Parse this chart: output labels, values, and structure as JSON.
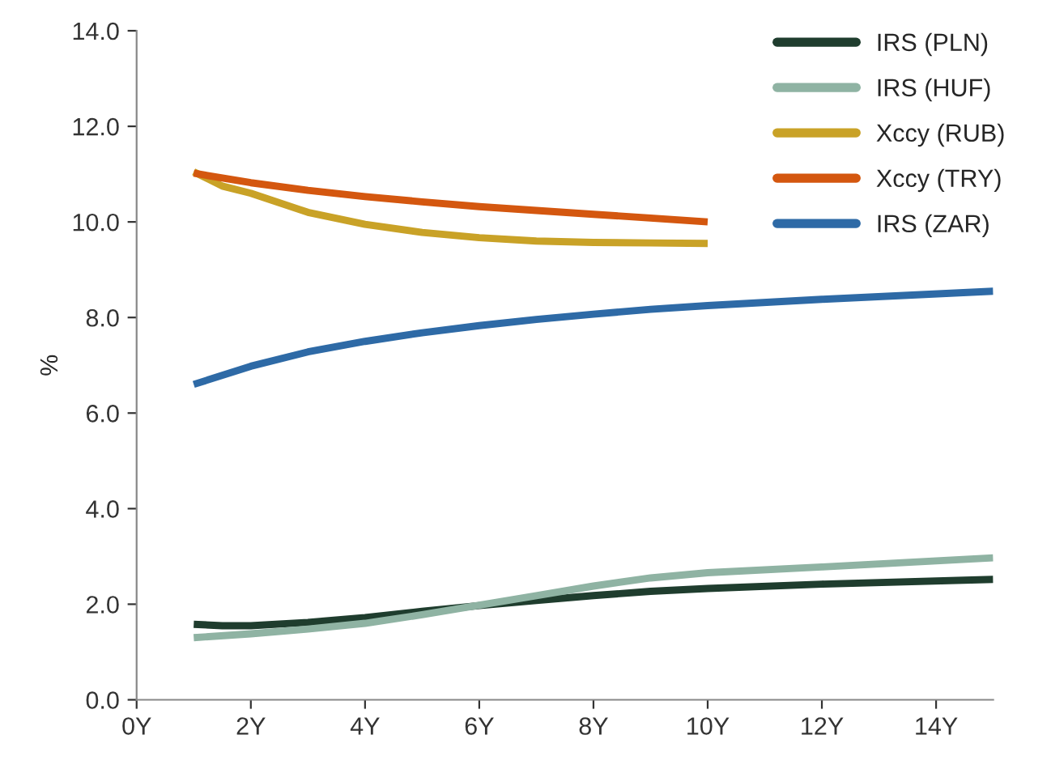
{
  "chart_data": {
    "type": "line",
    "ylabel": "%",
    "xlim": [
      0,
      15
    ],
    "ylim": [
      0,
      14
    ],
    "xticks": [
      {
        "value": 0,
        "label": "0Y"
      },
      {
        "value": 2,
        "label": "2Y"
      },
      {
        "value": 4,
        "label": "4Y"
      },
      {
        "value": 6,
        "label": "6Y"
      },
      {
        "value": 8,
        "label": "8Y"
      },
      {
        "value": 10,
        "label": "10Y"
      },
      {
        "value": 12,
        "label": "12Y"
      },
      {
        "value": 14,
        "label": "14Y"
      }
    ],
    "yticks": [
      {
        "value": 0,
        "label": "0.0"
      },
      {
        "value": 2,
        "label": "2.0"
      },
      {
        "value": 4,
        "label": "4.0"
      },
      {
        "value": 6,
        "label": "6.0"
      },
      {
        "value": 8,
        "label": "8.0"
      },
      {
        "value": 10,
        "label": "10.0"
      },
      {
        "value": 12,
        "label": "12.0"
      },
      {
        "value": 14,
        "label": "14.0"
      }
    ],
    "grid": false,
    "legend": "top right",
    "marker": "none",
    "line_style": "solid",
    "series": [
      {
        "name": "IRS (PLN)",
        "color": "#1f3d2e",
        "x": [
          1,
          1.5,
          2,
          3,
          4,
          5,
          6,
          7,
          8,
          9,
          10,
          12,
          15
        ],
        "values": [
          1.58,
          1.55,
          1.55,
          1.62,
          1.72,
          1.85,
          1.97,
          2.08,
          2.18,
          2.27,
          2.33,
          2.42,
          2.52
        ]
      },
      {
        "name": "IRS (HUF)",
        "color": "#8fb3a3",
        "x": [
          1,
          2,
          3,
          4,
          5,
          6,
          7,
          8,
          9,
          10,
          12,
          15
        ],
        "values": [
          1.3,
          1.38,
          1.48,
          1.6,
          1.78,
          1.98,
          2.18,
          2.38,
          2.55,
          2.66,
          2.78,
          2.97
        ]
      },
      {
        "name": "Xccy (RUB)",
        "color": "#c9a227",
        "x": [
          1,
          1.5,
          2,
          3,
          4,
          5,
          6,
          7,
          8,
          9,
          10
        ],
        "values": [
          11.05,
          10.75,
          10.6,
          10.2,
          9.95,
          9.78,
          9.67,
          9.6,
          9.57,
          9.56,
          9.55
        ]
      },
      {
        "name": "Xccy (TRY)",
        "color": "#d4570f",
        "x": [
          1,
          2,
          3,
          4,
          5,
          6,
          7,
          8,
          9,
          10
        ],
        "values": [
          11.02,
          10.82,
          10.66,
          10.53,
          10.42,
          10.32,
          10.24,
          10.16,
          10.08,
          10.0
        ]
      },
      {
        "name": "IRS (ZAR)",
        "color": "#2e6aa6",
        "x": [
          1,
          2,
          3,
          4,
          5,
          6,
          7,
          8,
          9,
          10,
          12,
          15
        ],
        "values": [
          6.6,
          6.98,
          7.28,
          7.5,
          7.68,
          7.83,
          7.96,
          8.07,
          8.17,
          8.25,
          8.38,
          8.55
        ]
      }
    ]
  }
}
